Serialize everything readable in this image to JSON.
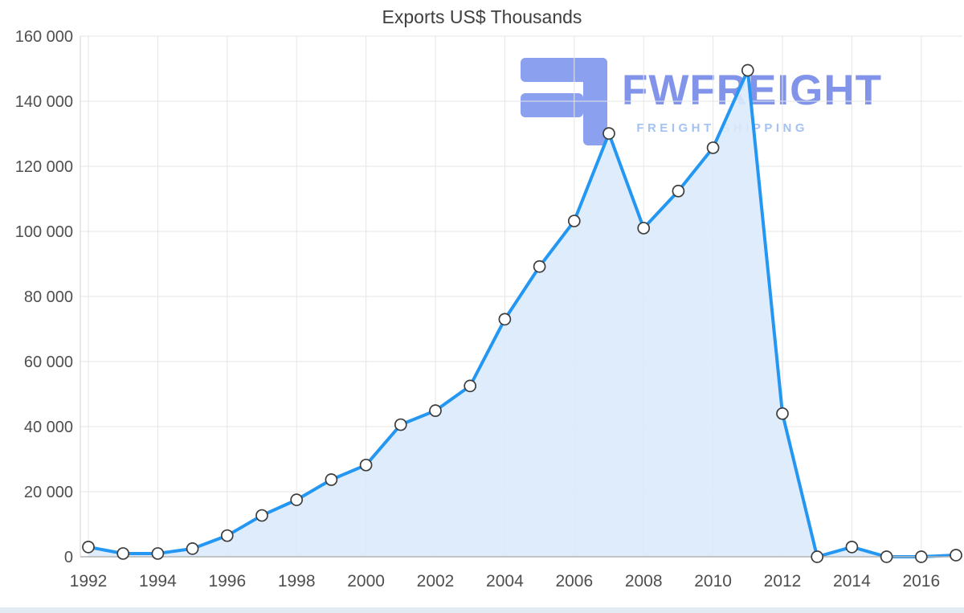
{
  "watermark": {
    "brand": "FWFREIGHT",
    "tagline": "FREIGHT SHIPPING",
    "brand_color": "#8194ea",
    "tagline_color": "#a4c2f2",
    "glyph_color": "#8ba0ee"
  },
  "scrollbar_color": "#e3ebf2",
  "chart_data": {
    "type": "area",
    "title": "Exports US$ Thousands",
    "x": [
      1992,
      1993,
      1994,
      1995,
      1996,
      1997,
      1998,
      1999,
      2000,
      2001,
      2002,
      2003,
      2004,
      2005,
      2006,
      2007,
      2008,
      2009,
      2010,
      2011,
      2012,
      2013,
      2014,
      2015,
      2016,
      2017
    ],
    "values": [
      3000,
      1000,
      1000,
      2500,
      6500,
      12700,
      17500,
      23700,
      28200,
      40600,
      44900,
      52500,
      73000,
      89200,
      103200,
      130100,
      101000,
      112400,
      125700,
      149500,
      44000,
      0,
      3000,
      0,
      0,
      500
    ],
    "xlabel": "",
    "ylabel": "",
    "ylim": [
      0,
      160000
    ],
    "y_ticks": [
      0,
      20000,
      40000,
      60000,
      80000,
      100000,
      120000,
      140000,
      160000
    ],
    "y_tick_labels": [
      "0",
      "20 000",
      "40 000",
      "60 000",
      "80 000",
      "100 000",
      "120 000",
      "140 000",
      "160 000"
    ],
    "x_ticks": [
      1992,
      1994,
      1996,
      1998,
      2000,
      2002,
      2004,
      2006,
      2008,
      2010,
      2012,
      2014,
      2016
    ],
    "grid": true,
    "legend": "none",
    "line_color": "#2497f3",
    "area_color": "#daeafb",
    "marker_fill": "#ffffff",
    "marker_stroke": "#3d3d3d",
    "grid_color": "#e6e6e6",
    "axis_color": "#b3b3b3",
    "y_axis_color": "#d0d0d0",
    "label_color": "#4f4f4f"
  }
}
